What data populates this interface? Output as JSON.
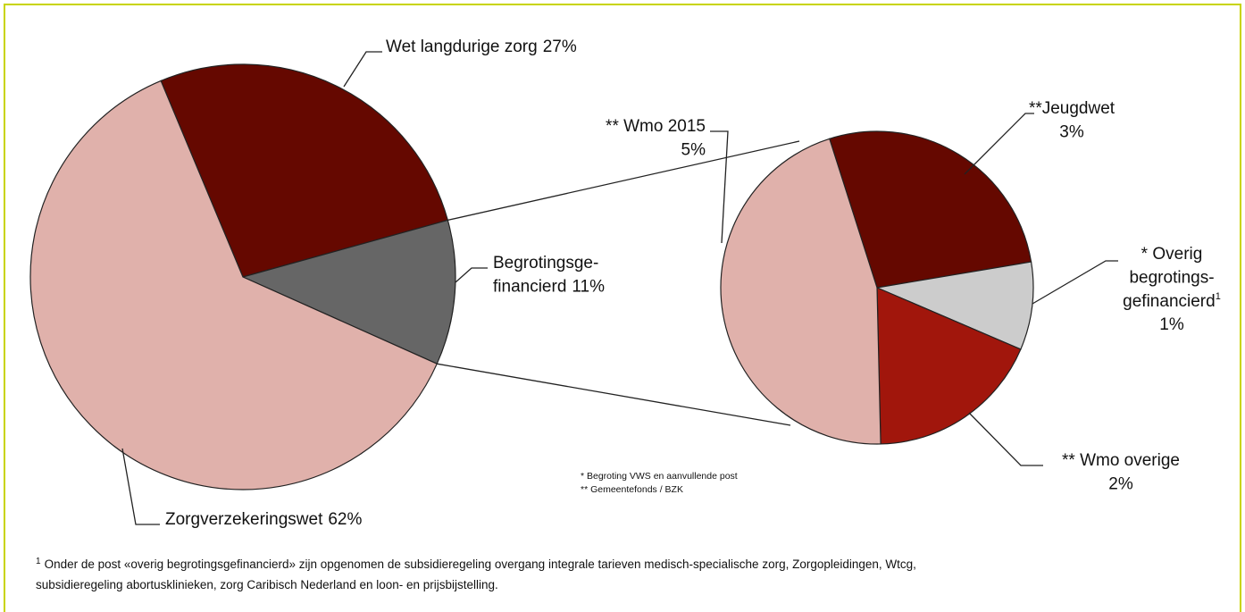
{
  "chart_data": [
    {
      "type": "pie",
      "categories": [
        "Wet langdurige zorg",
        "Begrotingsge-\nfinancierd",
        "Zorgverzekeringswet"
      ],
      "values": [
        27,
        11,
        62
      ],
      "value_labels": [
        "27%",
        "11%",
        "62%"
      ],
      "colors": [
        "#650800",
        "#666666",
        "#e0b1ab"
      ]
    },
    {
      "type": "pie",
      "categories": [
        "**Jeugdwet",
        "* Overig\nbegrotings-\ngefinancierd",
        "** Wmo overige",
        "** Wmo 2015"
      ],
      "superscripts": [
        null,
        "1",
        null,
        null
      ],
      "values": [
        3,
        1,
        2,
        5
      ],
      "value_labels": [
        "3%",
        "1%",
        "2%",
        "5%"
      ],
      "colors": [
        "#650800",
        "#cccccc",
        "#a1160c",
        "#e0b1ab"
      ]
    }
  ],
  "legend_notes": [
    "* Begroting VWS en aanvullende post",
    "** Gemeentefonds / BZK"
  ],
  "footnote": {
    "marker": "1",
    "lines": [
      "Onder de post «overig begrotingsgefinancierd» zijn opgenomen de subsidieregeling overgang integrale tarieven medisch-specialische zorg, Zorgopleidingen, Wtcg,",
      "subsidieregeling abortusklinieken, zorg Caribisch Nederland en loon- en prijsbijstelling."
    ]
  }
}
